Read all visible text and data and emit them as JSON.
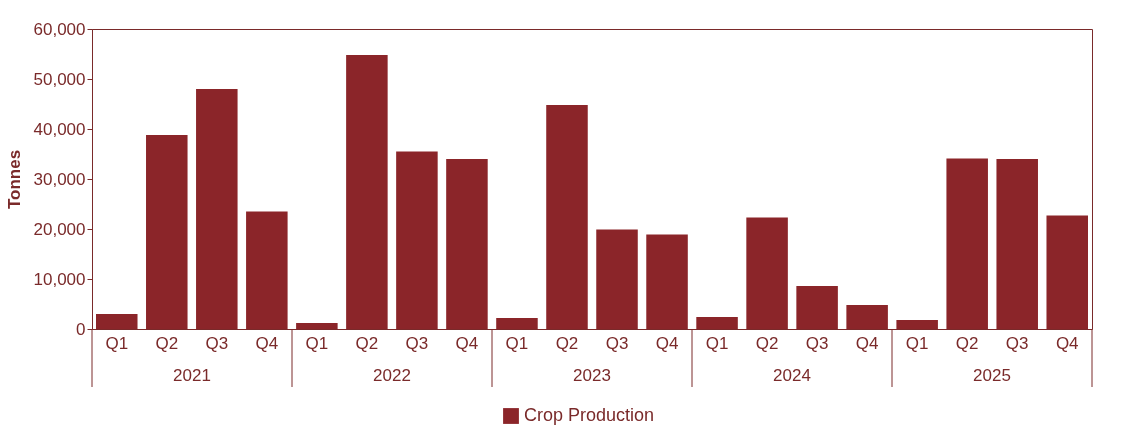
{
  "chart_data": {
    "type": "bar",
    "categories": [
      "Q1",
      "Q2",
      "Q3",
      "Q4",
      "Q1",
      "Q2",
      "Q3",
      "Q4",
      "Q1",
      "Q2",
      "Q3",
      "Q4",
      "Q1",
      "Q2",
      "Q3",
      "Q4",
      "Q1",
      "Q2",
      "Q3",
      "Q4"
    ],
    "series": [
      {
        "name": "Crop Production",
        "color": "#8b2529",
        "values": [
          3000,
          38800,
          48000,
          23500,
          1200,
          54800,
          35500,
          34000,
          2200,
          44800,
          19900,
          18900,
          2400,
          22300,
          8600,
          4800,
          1800,
          34100,
          34000,
          22700
        ]
      }
    ],
    "annotations": [
      "2021",
      "2022",
      "2023",
      "2024",
      "2025"
    ],
    "ylabel": "Tonnes",
    "ylim": [
      0,
      60000
    ],
    "yticks": [
      0,
      {
        "value": 10000,
        "label": "10,000"
      },
      {
        "value": 20000,
        "label": "20,000"
      },
      {
        "value": 30000,
        "label": "30,000"
      },
      {
        "value": 40000,
        "label": "40,000"
      },
      {
        "value": 50000,
        "label": "50,000"
      },
      {
        "value": 60000,
        "label": "60,000"
      }
    ],
    "grid": false,
    "legend": "bottom"
  }
}
